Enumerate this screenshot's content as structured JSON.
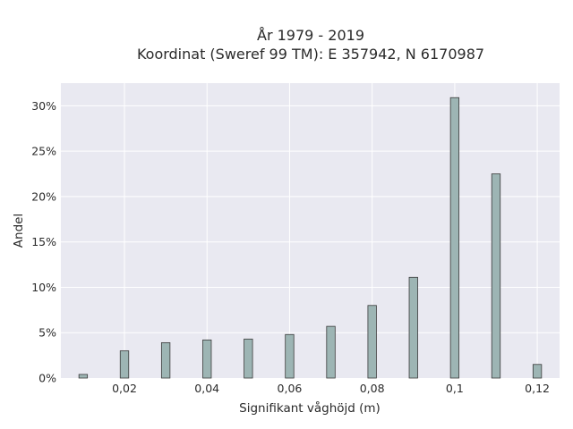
{
  "chart_data": {
    "type": "bar",
    "title_line1": "År 1979 - 2019",
    "title_line2": "Koordinat (Sweref 99 TM): E 357942, N 6170987",
    "xlabel": "Signifikant våghöjd (m)",
    "ylabel": "Andel",
    "x_ticks": [
      {
        "value": 0.02,
        "label": "0,02"
      },
      {
        "value": 0.04,
        "label": "0,04"
      },
      {
        "value": 0.06,
        "label": "0,06"
      },
      {
        "value": 0.08,
        "label": "0,08"
      },
      {
        "value": 0.1,
        "label": "0,1"
      },
      {
        "value": 0.12,
        "label": "0,12"
      }
    ],
    "y_ticks": [
      {
        "value": 0,
        "label": "0%"
      },
      {
        "value": 5,
        "label": "5%"
      },
      {
        "value": 10,
        "label": "10%"
      },
      {
        "value": 15,
        "label": "15%"
      },
      {
        "value": 20,
        "label": "20%"
      },
      {
        "value": 25,
        "label": "25%"
      },
      {
        "value": 30,
        "label": "30%"
      }
    ],
    "xlim": [
      0.0046,
      0.1254
    ],
    "ylim": [
      0,
      32.5
    ],
    "x": [
      0.01,
      0.02,
      0.03,
      0.04,
      0.05,
      0.06,
      0.07,
      0.08,
      0.09,
      0.1,
      0.11,
      0.12
    ],
    "values": [
      0.4,
      3.0,
      3.9,
      4.2,
      4.3,
      4.8,
      5.7,
      8.0,
      11.1,
      30.9,
      22.5,
      1.5
    ],
    "bar_color": "#9db5b4",
    "bar_edge_color": "#3a3a3a",
    "plot_bg": "#e9e9f1",
    "grid": true,
    "grid_color": "#ffffff"
  }
}
